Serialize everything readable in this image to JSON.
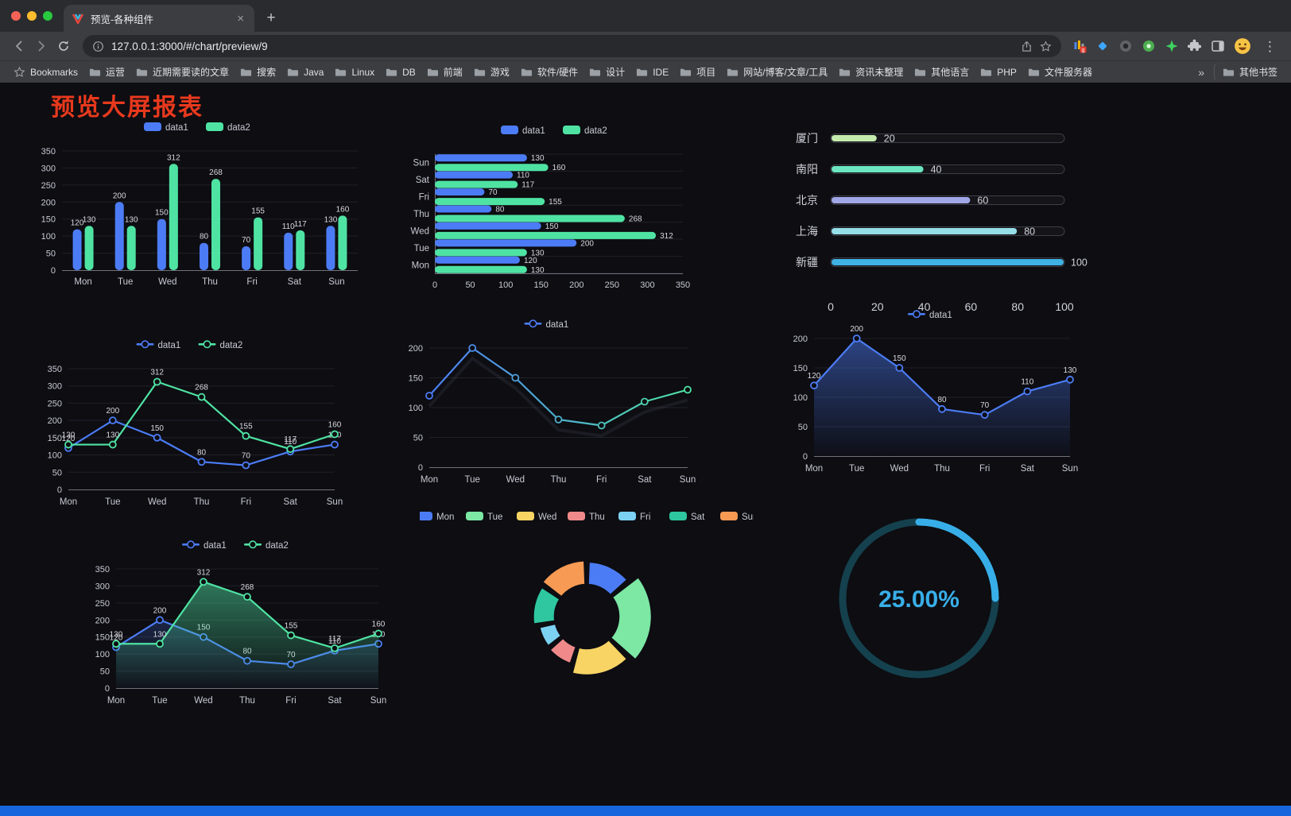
{
  "browser": {
    "tab": {
      "title": "预览-各种组件",
      "close": "×"
    },
    "new_tab_button": "+",
    "toolbar": {
      "url": "127.0.0.1:3000/#/chart/preview/9"
    },
    "menu_kebab": "⋮",
    "bookmarks_bar": {
      "first_item": "Bookmarks",
      "folders": [
        "运营",
        "近期需要读的文章",
        "搜索",
        "Java",
        "Linux",
        "DB",
        "前端",
        "游戏",
        "软件/硬件",
        "设计",
        "IDE",
        "项目",
        "网站/博客/文章/工具",
        "资讯未整理",
        "其他语言",
        "PHP",
        "文件服务器"
      ],
      "overflow": "»",
      "other_bookmarks": "其他书签"
    }
  },
  "page": {
    "title": "预览大屏报表",
    "title_color": "#e8391d",
    "background": "#0d0d12",
    "footer_color": "#1766dd"
  },
  "chart_data": [
    {
      "id": "grouped-bar",
      "type": "bar",
      "categories": [
        "Mon",
        "Tue",
        "Wed",
        "Thu",
        "Fri",
        "Sat",
        "Sun"
      ],
      "series": [
        {
          "name": "data1",
          "color": "#4C7CF5",
          "values": [
            120,
            200,
            150,
            80,
            70,
            110,
            130
          ]
        },
        {
          "name": "data2",
          "color": "#4FE3A3",
          "values": [
            130,
            130,
            312,
            268,
            155,
            117,
            160
          ]
        }
      ],
      "ylim": [
        0,
        350
      ],
      "yticks": [
        0,
        50,
        100,
        150,
        200,
        250,
        300,
        350
      ],
      "value_labels": true,
      "legend_position": "top"
    },
    {
      "id": "horizontal-bar",
      "type": "hbar",
      "categories": [
        "Mon",
        "Tue",
        "Wed",
        "Thu",
        "Fri",
        "Sat",
        "Sun"
      ],
      "series": [
        {
          "name": "data1",
          "color": "#4C7CF5",
          "values": [
            120,
            200,
            150,
            80,
            70,
            110,
            130
          ]
        },
        {
          "name": "data2",
          "color": "#4FE3A3",
          "values": [
            130,
            130,
            312,
            268,
            155,
            117,
            160
          ]
        }
      ],
      "xlim": [
        0,
        350
      ],
      "xticks": [
        0,
        50,
        100,
        150,
        200,
        250,
        300,
        350
      ],
      "value_labels": true,
      "legend_position": "top"
    },
    {
      "id": "progress-bars",
      "type": "progress",
      "max": 100,
      "xticks": [
        0,
        20,
        40,
        60,
        80,
        100
      ],
      "rows": [
        {
          "label": "厦门",
          "value": 20,
          "color": "#C4EBAD"
        },
        {
          "label": "南阳",
          "value": 40,
          "color": "#6BE6C1"
        },
        {
          "label": "北京",
          "value": 60,
          "color": "#A0A7E6"
        },
        {
          "label": "上海",
          "value": 80,
          "color": "#96DEE8"
        },
        {
          "label": "新疆",
          "value": 100,
          "color": "#3FB1E3"
        }
      ]
    },
    {
      "id": "dual-line",
      "type": "line",
      "categories": [
        "Mon",
        "Tue",
        "Wed",
        "Thu",
        "Fri",
        "Sat",
        "Sun"
      ],
      "series": [
        {
          "name": "data1",
          "color": "#4C7CF5",
          "values": [
            120,
            200,
            150,
            80,
            70,
            110,
            130
          ]
        },
        {
          "name": "data2",
          "color": "#4FE3A3",
          "values": [
            130,
            130,
            312,
            268,
            155,
            117,
            160
          ]
        }
      ],
      "ylim": [
        0,
        350
      ],
      "yticks": [
        0,
        50,
        100,
        150,
        200,
        250,
        300,
        350
      ],
      "value_labels": true,
      "legend_position": "top"
    },
    {
      "id": "gradient-line",
      "type": "line",
      "categories": [
        "Mon",
        "Tue",
        "Wed",
        "Thu",
        "Fri",
        "Sat",
        "Sun"
      ],
      "series": [
        {
          "name": "data1",
          "gradient": [
            "#4C7CF5",
            "#4FE3A3"
          ],
          "values": [
            120,
            200,
            150,
            80,
            70,
            110,
            130
          ]
        }
      ],
      "ylim": [
        0,
        200
      ],
      "yticks": [
        0,
        50,
        100,
        150,
        200
      ],
      "value_labels": false,
      "shadow": true,
      "legend_position": "top"
    },
    {
      "id": "area-line",
      "type": "line",
      "categories": [
        "Mon",
        "Tue",
        "Wed",
        "Thu",
        "Fri",
        "Sat",
        "Sun"
      ],
      "series": [
        {
          "name": "data1",
          "color": "#4C7CF5",
          "values": [
            120,
            200,
            150,
            80,
            70,
            110,
            130
          ],
          "area": true,
          "area_opacity": 0.5
        }
      ],
      "ylim": [
        0,
        200
      ],
      "yticks": [
        0,
        50,
        100,
        150,
        200
      ],
      "value_labels": true,
      "legend_position": "top"
    },
    {
      "id": "dual-area-line",
      "type": "line",
      "categories": [
        "Mon",
        "Tue",
        "Wed",
        "Thu",
        "Fri",
        "Sat",
        "Sun"
      ],
      "series": [
        {
          "name": "data1",
          "color": "#4C7CF5",
          "values": [
            120,
            200,
            150,
            80,
            70,
            110,
            130
          ],
          "area": true,
          "area_opacity": 0.22
        },
        {
          "name": "data2",
          "color": "#4FE3A3",
          "values": [
            130,
            130,
            312,
            268,
            155,
            117,
            160
          ],
          "area": true,
          "area_opacity": 0.5
        }
      ],
      "ylim": [
        0,
        350
      ],
      "yticks": [
        0,
        50,
        100,
        150,
        200,
        250,
        300,
        350
      ],
      "value_labels": true,
      "legend_position": "top"
    },
    {
      "id": "rose-pie",
      "type": "pie",
      "categories": [
        "Mon",
        "Tue",
        "Wed",
        "Thu",
        "Fri",
        "Sat",
        "Sun"
      ],
      "values": [
        120,
        200,
        150,
        80,
        70,
        110,
        130
      ],
      "colors": [
        "#4C7CF5",
        "#7CE8A4",
        "#F7D464",
        "#F08A8A",
        "#7CD2F2",
        "#2EC7A0",
        "#F79A54"
      ],
      "legend_position": "top"
    },
    {
      "id": "gauge",
      "type": "gauge",
      "value": 25,
      "label": "25.00%",
      "color": "#38AEE8",
      "track_color": "#14414D"
    }
  ]
}
